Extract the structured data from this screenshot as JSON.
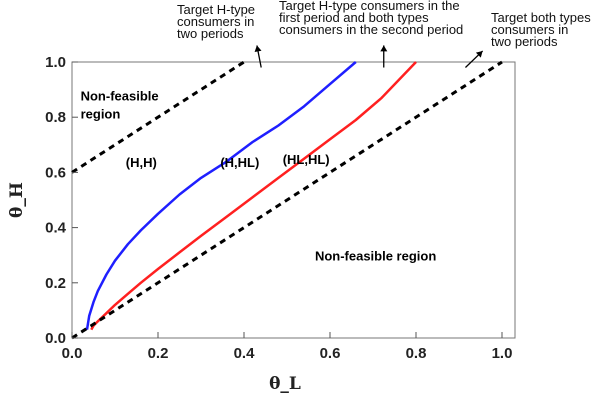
{
  "chart_data": {
    "type": "line",
    "xlabel": "θ_L",
    "ylabel": "θ_H",
    "xlim": [
      0,
      1
    ],
    "ylim": [
      0,
      1
    ],
    "x_ticks": [
      "0.0",
      "0.2",
      "0.4",
      "0.6",
      "0.8",
      "1.0"
    ],
    "y_ticks": [
      "0.0",
      "0.2",
      "0.4",
      "0.6",
      "0.8",
      "1.0"
    ],
    "grid": false,
    "series": [
      {
        "style": "dashed",
        "color": "#000000",
        "x": [
          0.0,
          0.4
        ],
        "y": [
          0.6,
          1.0
        ]
      },
      {
        "style": "solid",
        "color": "#1f1fff",
        "x": [
          0.035,
          0.04,
          0.05,
          0.06,
          0.08,
          0.1,
          0.13,
          0.16,
          0.2,
          0.25,
          0.3,
          0.36,
          0.42,
          0.48,
          0.54,
          0.6,
          0.66
        ],
        "y": [
          0.03,
          0.08,
          0.13,
          0.17,
          0.23,
          0.28,
          0.34,
          0.39,
          0.45,
          0.52,
          0.58,
          0.64,
          0.71,
          0.77,
          0.84,
          0.92,
          1.0
        ]
      },
      {
        "style": "solid",
        "color": "#ff2020",
        "x": [
          0.045,
          0.05,
          0.06,
          0.08,
          0.1,
          0.13,
          0.16,
          0.2,
          0.25,
          0.3,
          0.36,
          0.42,
          0.48,
          0.54,
          0.6,
          0.66,
          0.72,
          0.8
        ],
        "y": [
          0.03,
          0.045,
          0.06,
          0.09,
          0.12,
          0.16,
          0.2,
          0.25,
          0.31,
          0.37,
          0.44,
          0.51,
          0.58,
          0.65,
          0.72,
          0.79,
          0.87,
          1.0
        ]
      },
      {
        "style": "dashed",
        "color": "#000000",
        "x": [
          0.0,
          1.0
        ],
        "y": [
          0.0,
          1.0
        ]
      }
    ],
    "region_labels": [
      {
        "text": "Non-feasible region",
        "lines": [
          "Non-feasible",
          "region"
        ],
        "x": 0.02,
        "y": 0.86
      },
      {
        "text": "(H,H)",
        "x": 0.125,
        "y": 0.62
      },
      {
        "text": "(H,HL)",
        "x": 0.345,
        "y": 0.62
      },
      {
        "text": "(HL,HL)",
        "x": 0.49,
        "y": 0.63
      },
      {
        "text": "Non-feasible region",
        "x": 0.565,
        "y": 0.28
      }
    ],
    "annotations": [
      {
        "lines": [
          "Target H-type",
          "consumers in",
          "two periods"
        ],
        "arrow_from": [
          0.44,
          0.98
        ],
        "arrow_to": [
          0.43,
          1.06
        ]
      },
      {
        "lines": [
          "Target H-type consumers in the",
          "first period and both types",
          "consumers in the second period"
        ],
        "arrow_from": [
          0.725,
          0.98
        ],
        "arrow_to": [
          0.725,
          1.06
        ]
      },
      {
        "lines": [
          "Target both types",
          "consumers in",
          "two periods"
        ],
        "arrow_from": [
          0.915,
          0.98
        ],
        "arrow_to": [
          0.955,
          1.04
        ]
      }
    ]
  }
}
